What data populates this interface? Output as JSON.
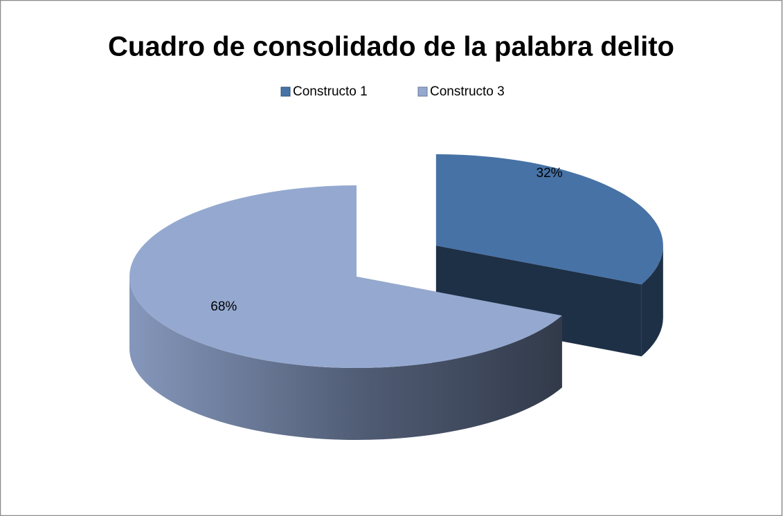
{
  "chart_data": {
    "type": "pie",
    "title": "Cuadro de consolidado de la palabra delito",
    "categories": [
      "Constructo 1",
      "Constructo 3"
    ],
    "values": [
      32,
      68
    ],
    "value_labels": [
      "32%",
      "68%"
    ],
    "colors": [
      "#4772a6",
      "#95a9d0"
    ],
    "legend": "top"
  }
}
